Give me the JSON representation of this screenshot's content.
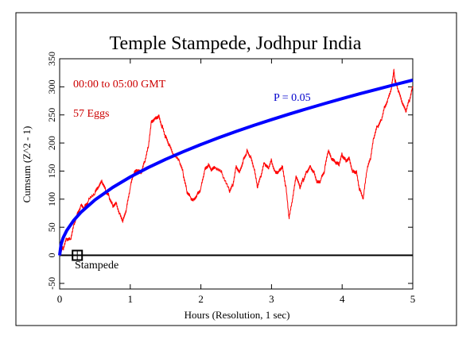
{
  "chart_data": {
    "type": "line",
    "title": "Temple Stampede, Jodhpur India",
    "xlabel": "Hours (Resolution, 1 sec)",
    "ylabel": "Cumsum (Z^2 - 1)",
    "xlim": [
      0,
      5
    ],
    "ylim": [
      -60,
      350
    ],
    "xticks": [
      0,
      1,
      2,
      3,
      4,
      5
    ],
    "yticks": [
      -50,
      0,
      50,
      100,
      150,
      200,
      250,
      300,
      350
    ],
    "annotations": {
      "time_range": "00:00 to 05:00 GMT",
      "eggs": "57 Eggs",
      "p_label": "P = 0.05",
      "event_label": "Stampede"
    },
    "event_marker": {
      "x": 0.25,
      "y": 0
    },
    "baseline_y": 0,
    "colors": {
      "cumsum": "#ff0000",
      "probability": "#0000ff",
      "baseline": "#000000",
      "annotation_text": "#cc0000",
      "p_text": "#0000cc"
    },
    "series": [
      {
        "role": "cumsum",
        "x": [
          0,
          0.05,
          0.1,
          0.15,
          0.2,
          0.25,
          0.3,
          0.35,
          0.4,
          0.5,
          0.55,
          0.6,
          0.65,
          0.7,
          0.75,
          0.8,
          0.85,
          0.9,
          0.95,
          1.0,
          1.05,
          1.1,
          1.15,
          1.2,
          1.25,
          1.3,
          1.35,
          1.4,
          1.45,
          1.5,
          1.55,
          1.6,
          1.7,
          1.75,
          1.8,
          1.85,
          1.9,
          1.95,
          2.0,
          2.05,
          2.1,
          2.15,
          2.2,
          2.3,
          2.4,
          2.45,
          2.5,
          2.55,
          2.6,
          2.65,
          2.7,
          2.75,
          2.8,
          2.85,
          2.9,
          2.95,
          3.0,
          3.05,
          3.1,
          3.15,
          3.2,
          3.25,
          3.3,
          3.35,
          3.4,
          3.45,
          3.5,
          3.55,
          3.6,
          3.65,
          3.7,
          3.75,
          3.8,
          3.85,
          3.9,
          3.95,
          4.0,
          4.05,
          4.1,
          4.15,
          4.2,
          4.25,
          4.3,
          4.35,
          4.4,
          4.45,
          4.5,
          4.55,
          4.6,
          4.65,
          4.7,
          4.73,
          4.75,
          4.8,
          4.85,
          4.9,
          4.95,
          5.0
        ],
        "values": [
          0,
          12,
          30,
          28,
          55,
          75,
          90,
          85,
          95,
          110,
          120,
          130,
          115,
          105,
          90,
          95,
          75,
          62,
          85,
          120,
          145,
          150,
          145,
          165,
          190,
          240,
          245,
          250,
          230,
          210,
          195,
          180,
          165,
          145,
          115,
          105,
          100,
          110,
          120,
          150,
          160,
          150,
          155,
          145,
          115,
          125,
          160,
          150,
          170,
          185,
          175,
          155,
          120,
          140,
          165,
          155,
          170,
          150,
          150,
          160,
          125,
          65,
          100,
          140,
          120,
          135,
          150,
          160,
          150,
          130,
          135,
          150,
          185,
          170,
          165,
          160,
          180,
          170,
          175,
          150,
          150,
          115,
          100,
          150,
          170,
          210,
          230,
          240,
          265,
          280,
          300,
          330,
          310,
          290,
          270,
          255,
          275,
          300
        ]
      },
      {
        "role": "probability",
        "name": "P = 0.05",
        "x": [
          0,
          0.02,
          0.05,
          0.1,
          0.2,
          0.3,
          0.5,
          0.75,
          1.0,
          1.25,
          1.5,
          1.75,
          2.0,
          2.25,
          2.5,
          2.75,
          3.0,
          3.25,
          3.5,
          3.75,
          4.0,
          4.25,
          4.5,
          4.75,
          5.0
        ],
        "values": [
          0,
          19.7,
          31.2,
          44.1,
          62.4,
          76.4,
          98.6,
          120.8,
          139.5,
          156.0,
          170.9,
          184.5,
          197.3,
          209.3,
          220.6,
          231.4,
          241.6,
          251.5,
          261.0,
          270.1,
          279.0,
          287.6,
          295.9,
          304.1,
          312.0
        ]
      }
    ]
  }
}
